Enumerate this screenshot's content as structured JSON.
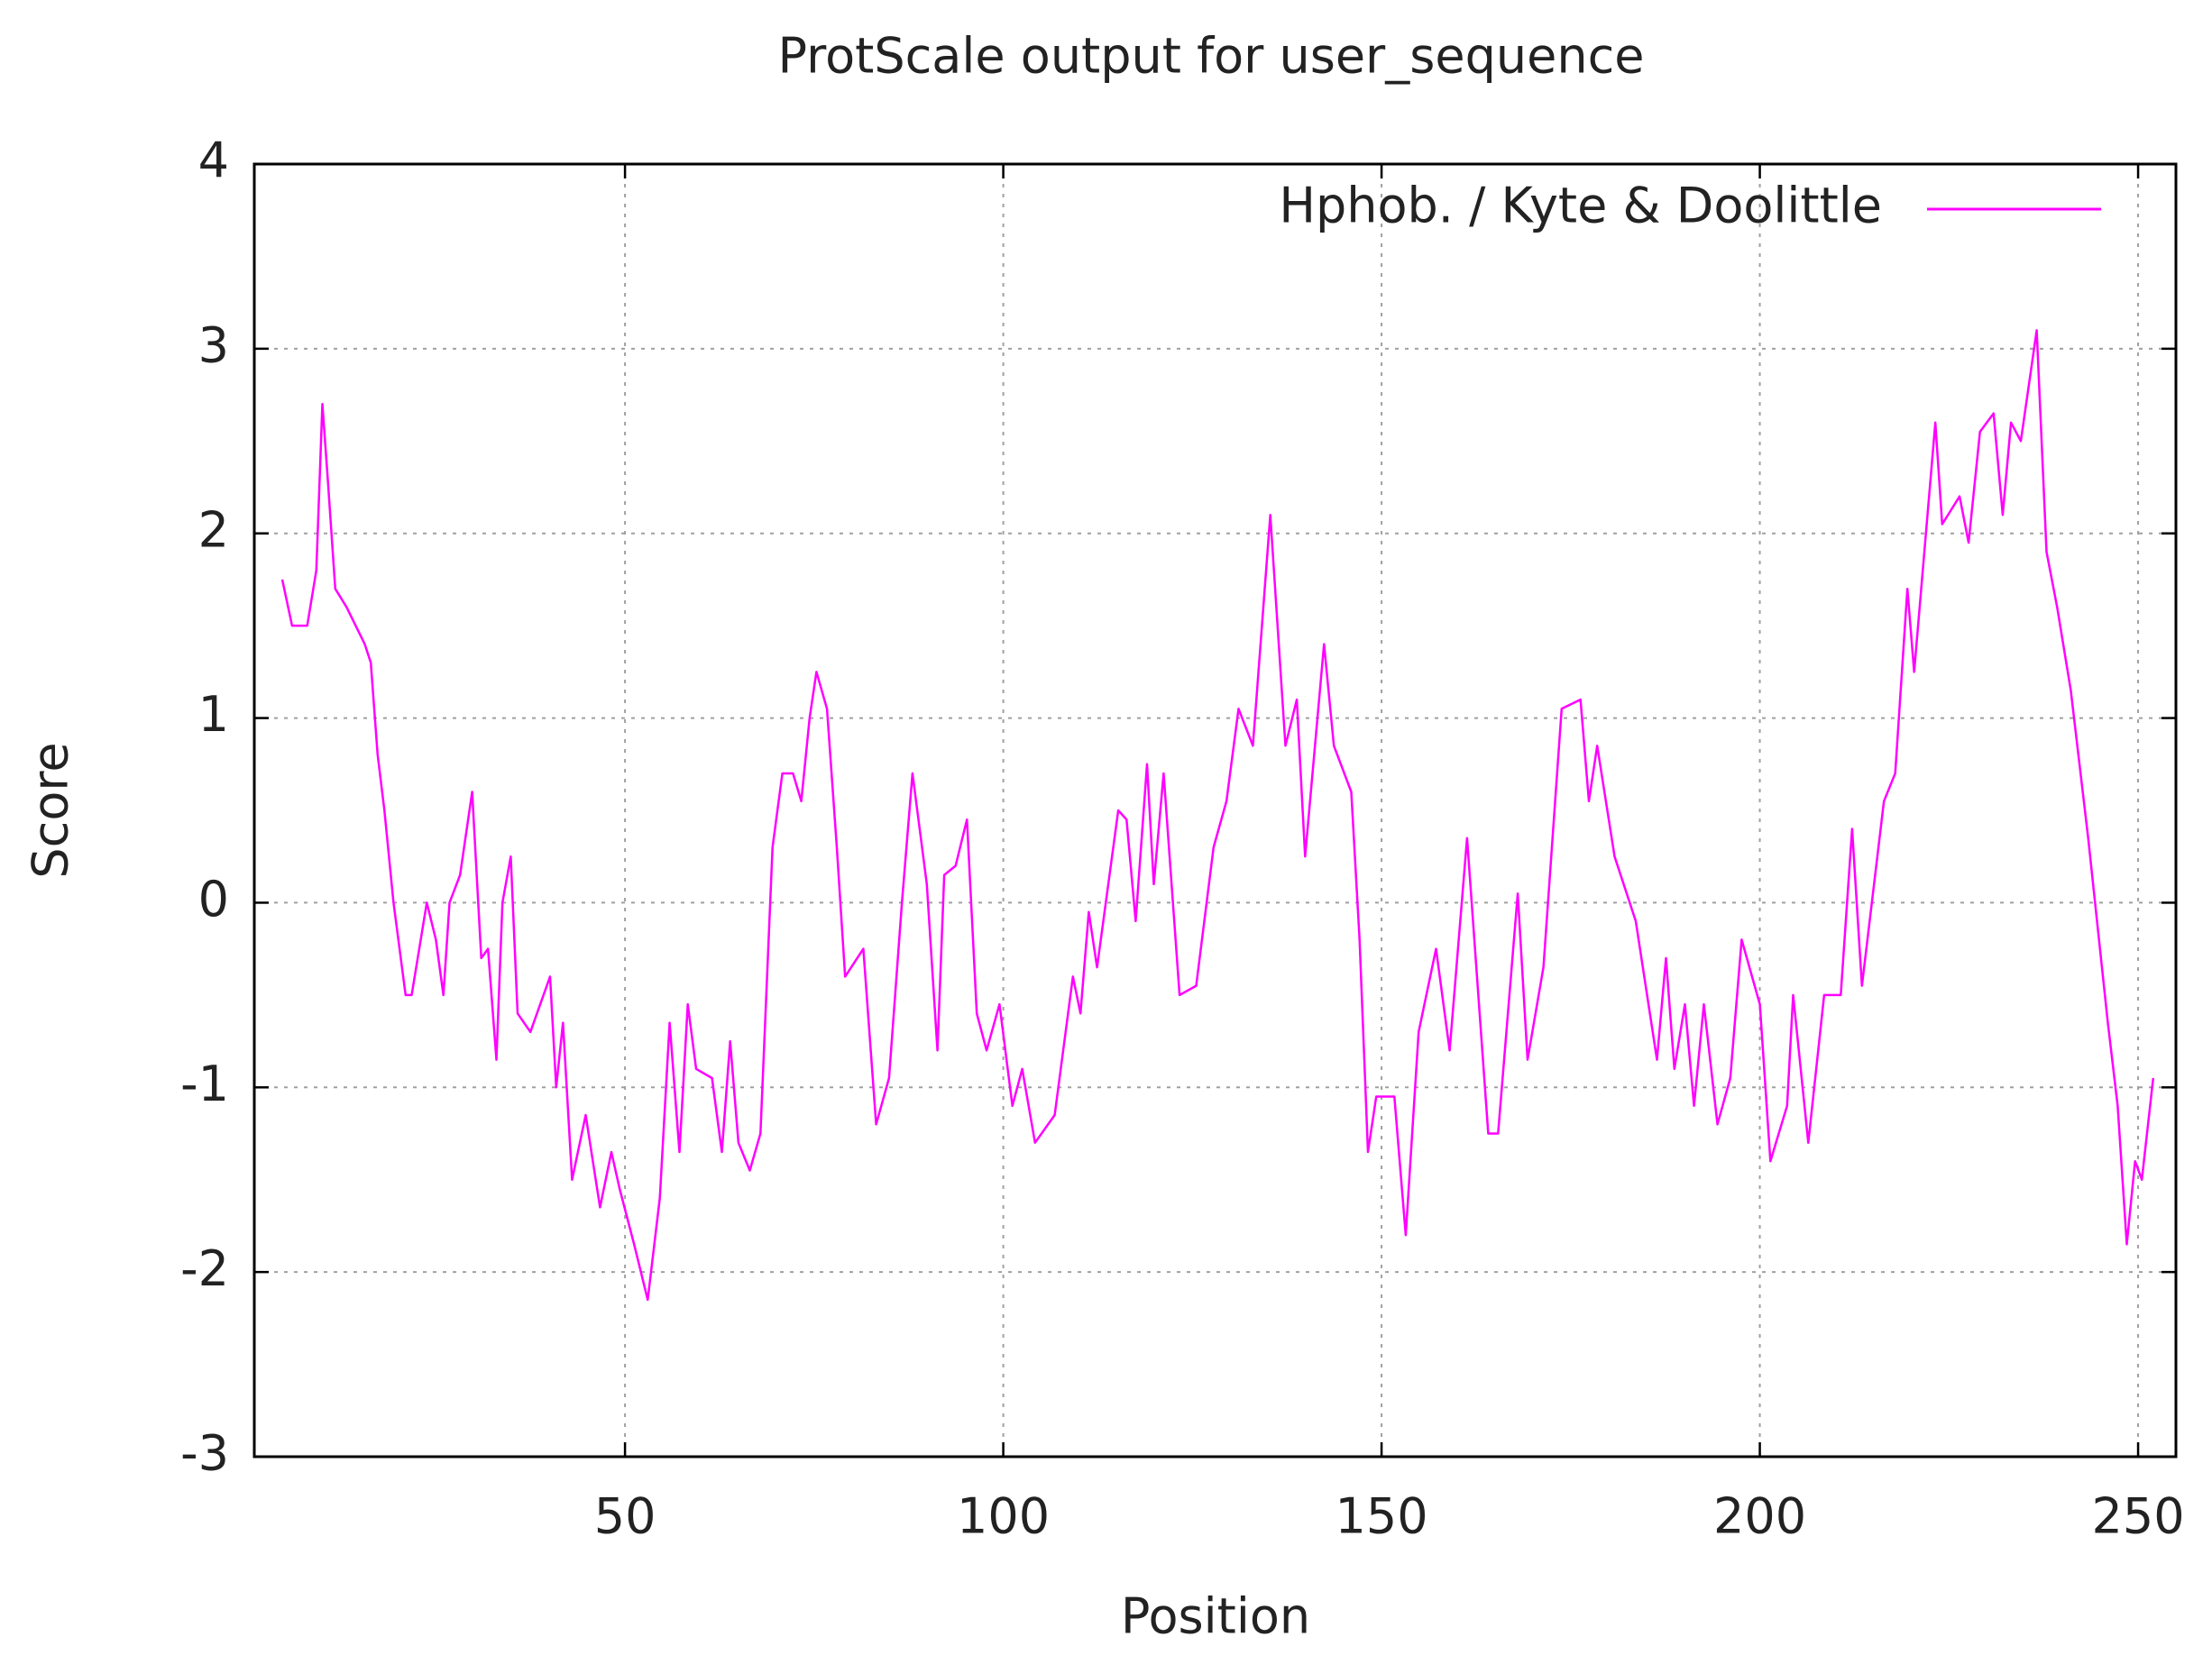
{
  "chart_data": {
    "type": "line",
    "title": "ProtScale output for user_sequence",
    "x_label": "Position",
    "y_label": "Score",
    "xlim": [
      1,
      255
    ],
    "ylim": [
      -3,
      4
    ],
    "xticks": [
      50,
      100,
      150,
      200,
      250
    ],
    "yticks": [
      -3,
      -2,
      -1,
      0,
      1,
      2,
      3,
      4
    ],
    "grid": true,
    "legend": "upper right",
    "x": [
      4.7,
      6,
      8,
      9.2,
      10,
      10.7,
      11.7,
      13.2,
      15.6,
      16.4,
      17.3,
      18.2,
      19.4,
      21,
      21.8,
      23.8,
      25,
      26,
      26.8,
      28.2,
      29.8,
      31,
      31.9,
      33,
      33.8,
      34.9,
      35.8,
      37.5,
      40.1,
      40.9,
      41.8,
      43,
      44.8,
      46.7,
      48.2,
      49.3,
      51.2,
      53,
      54.6,
      55.9,
      57.2,
      58.3,
      59.4,
      61.5,
      62.8,
      63.9,
      65,
      66.5,
      67.9,
      69.5,
      70.8,
      72.2,
      73.3,
      74.4,
      75.3,
      76.7,
      78,
      79.1,
      81.5,
      83.2,
      84.9,
      86.6,
      88,
      89.9,
      91.3,
      92.2,
      93.7,
      95.2,
      96.5,
      97.8,
      99.5,
      101.2,
      102.5,
      104.2,
      106.8,
      109.2,
      110.2,
      111.3,
      112.4,
      115.2,
      116.3,
      117.5,
      119,
      119.9,
      121.2,
      123.3,
      125.5,
      127.8,
      129.5,
      131.1,
      133,
      135.3,
      137.3,
      138.8,
      139.9,
      142.4,
      143.7,
      146,
      147.1,
      148.2,
      149.3,
      151.7,
      153.2,
      154.9,
      157.2,
      159,
      161.3,
      164.1,
      165.4,
      168,
      169.3,
      171.4,
      173.8,
      176.3,
      177.4,
      178.5,
      180.8,
      183.6,
      186.4,
      187.6,
      188.7,
      190.1,
      191.3,
      192.6,
      194.4,
      196.1,
      197.6,
      200,
      201.4,
      203.6,
      204.4,
      206.4,
      208.5,
      210.7,
      212.2,
      213.5,
      216.4,
      217.9,
      219.5,
      220.4,
      223.2,
      224.1,
      226.4,
      227.6,
      229.1,
      230.9,
      232.1,
      233.2,
      234.5,
      236.6,
      237.9,
      239.3,
      241.1,
      243.4,
      246,
      247.3,
      248.5,
      249.6,
      250.5,
      252
    ],
    "series": [
      {
        "name": "Hphob. / Kyte & Doolittle",
        "color": "#ff00ff",
        "values": [
          1.75,
          1.5,
          1.5,
          1.8,
          2.7,
          2.3,
          1.7,
          1.6,
          1.4,
          1.3,
          0.8,
          0.5,
          0.0,
          -0.5,
          -0.5,
          0.0,
          -0.2,
          -0.5,
          0.0,
          0.15,
          0.6,
          -0.3,
          -0.25,
          -0.85,
          0.0,
          0.25,
          -0.6,
          -0.7,
          -0.4,
          -1.0,
          -0.65,
          -1.5,
          -1.15,
          -1.65,
          -1.35,
          -1.55,
          -1.85,
          -2.15,
          -1.6,
          -0.65,
          -1.35,
          -0.55,
          -0.9,
          -0.95,
          -1.35,
          -0.75,
          -1.3,
          -1.45,
          -1.25,
          0.3,
          0.7,
          0.7,
          0.55,
          1.0,
          1.25,
          1.05,
          0.3,
          -0.4,
          -0.25,
          -1.2,
          -0.95,
          0.0,
          0.7,
          0.1,
          -0.8,
          0.15,
          0.2,
          0.45,
          -0.6,
          -0.8,
          -0.55,
          -1.1,
          -0.9,
          -1.3,
          -1.15,
          -0.4,
          -0.6,
          -0.05,
          -0.35,
          0.5,
          0.45,
          -0.1,
          0.75,
          0.1,
          0.7,
          -0.5,
          -0.45,
          0.3,
          0.55,
          1.05,
          0.85,
          2.1,
          0.85,
          1.1,
          0.25,
          1.4,
          0.85,
          0.6,
          -0.2,
          -1.35,
          -1.05,
          -1.05,
          -1.8,
          -0.7,
          -0.25,
          -0.8,
          0.35,
          -1.25,
          -1.25,
          0.05,
          -0.85,
          -0.35,
          1.05,
          1.1,
          0.55,
          0.85,
          0.25,
          -0.1,
          -0.85,
          -0.3,
          -0.9,
          -0.55,
          -1.1,
          -0.55,
          -1.2,
          -0.95,
          -0.2,
          -0.55,
          -1.4,
          -1.1,
          -0.5,
          -1.3,
          -0.5,
          -0.5,
          0.4,
          -0.45,
          0.55,
          0.7,
          1.7,
          1.25,
          2.6,
          2.05,
          2.2,
          1.95,
          2.55,
          2.65,
          2.1,
          2.6,
          2.5,
          3.1,
          1.9,
          1.6,
          1.15,
          0.35,
          -0.65,
          -1.1,
          -1.85,
          -1.4,
          -1.5,
          -0.95
        ]
      }
    ]
  }
}
